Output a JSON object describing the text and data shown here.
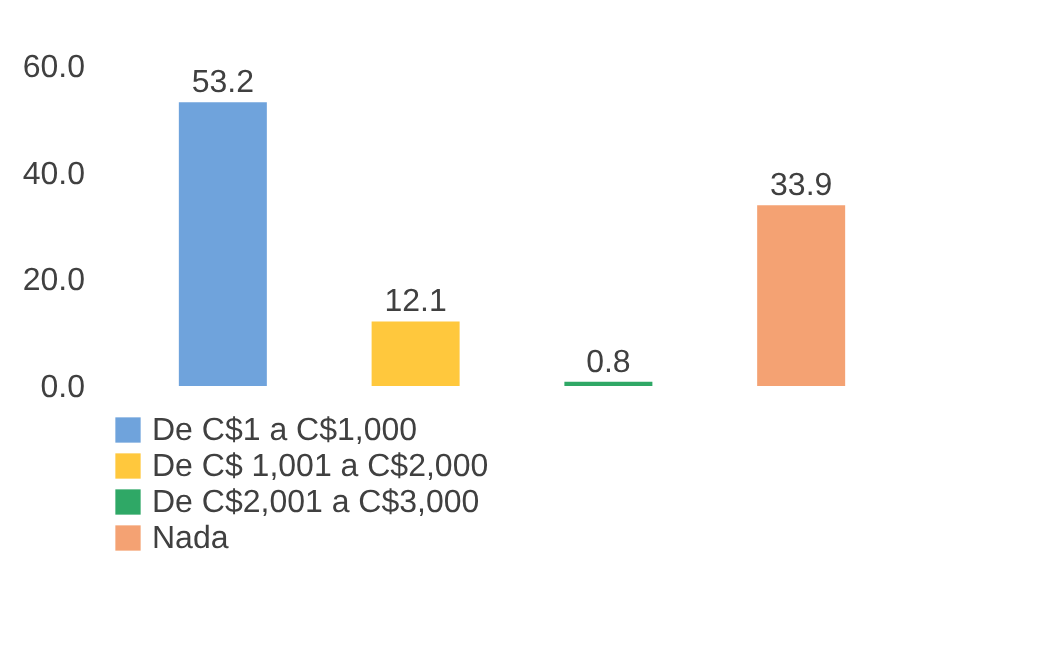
{
  "chart_data": {
    "type": "bar",
    "stacked": true,
    "categories": [
      null,
      null,
      null,
      null
    ],
    "series": [
      {
        "name": "De C$1 a C$1,000",
        "color": "#6fa3dc",
        "values": [
          53.2,
          null,
          null,
          null
        ]
      },
      {
        "name": "De C$ 1,001 a C$2,000",
        "color": "#ffc83d",
        "values": [
          null,
          12.1,
          null,
          null
        ]
      },
      {
        "name": "De C$2,001 a C$3,000",
        "color": "#2fa866",
        "values": [
          null,
          null,
          0.8,
          null
        ]
      },
      {
        "name": "Nada",
        "color": "#f4a273",
        "values": [
          null,
          null,
          null,
          33.9
        ]
      }
    ],
    "ylim": [
      0,
      60
    ],
    "yticks": [
      {
        "value": 0,
        "label": "0.0"
      },
      {
        "value": 20,
        "label": "20.0"
      },
      {
        "value": 40,
        "label": "40.0"
      },
      {
        "value": 60,
        "label": "60.0"
      }
    ],
    "data_labels": true,
    "grid": false,
    "legend": "bottom"
  }
}
